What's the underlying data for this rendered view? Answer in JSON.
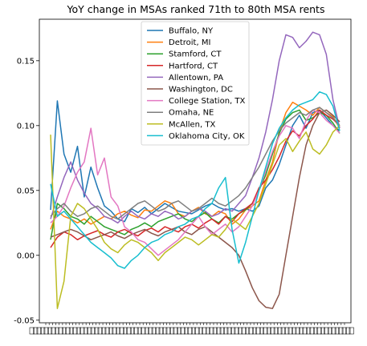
{
  "chart_data": {
    "type": "line",
    "title": "YoY change in MSAs ranked 71th to 80th MSA rents",
    "xlabel": "",
    "ylabel": "",
    "x_labels_note": "dense, overlapping date tick labels (illegible)",
    "ylim": [
      -0.052,
      0.182
    ],
    "yticks": [
      -0.05,
      0.0,
      0.05,
      0.1,
      0.15
    ],
    "ytick_labels": [
      "-0.05",
      "0.00",
      "0.05",
      "0.10",
      "0.15"
    ],
    "legend_position": "upper center",
    "grid": false,
    "colors": [
      "#1f77b4",
      "#ff7f0e",
      "#2ca02c",
      "#d62728",
      "#9467bd",
      "#8c564b",
      "#e377c2",
      "#7f7f7f",
      "#bcbd22",
      "#17becf"
    ],
    "series": [
      {
        "name": "Buffalo, NY",
        "values": [
          0.035,
          0.119,
          0.078,
          0.064,
          0.084,
          0.045,
          0.068,
          0.052,
          0.038,
          0.034,
          0.028,
          0.026,
          0.036,
          0.033,
          0.037,
          0.032,
          0.036,
          0.04,
          0.037,
          0.034,
          0.033,
          0.032,
          0.035,
          0.038,
          0.04,
          0.037,
          0.035,
          0.036,
          0.034,
          0.036,
          0.034,
          0.038,
          0.052,
          0.058,
          0.07,
          0.085,
          0.1,
          0.108,
          0.098,
          0.11,
          0.112,
          0.106,
          0.1,
          0.096
        ]
      },
      {
        "name": "Detroit, MI",
        "values": [
          0.02,
          0.034,
          0.03,
          0.028,
          0.025,
          0.028,
          0.024,
          0.027,
          0.03,
          0.028,
          0.032,
          0.034,
          0.031,
          0.029,
          0.035,
          0.034,
          0.038,
          0.042,
          0.04,
          0.032,
          0.03,
          0.034,
          0.037,
          0.032,
          0.03,
          0.034,
          0.032,
          0.024,
          0.028,
          0.035,
          0.038,
          0.042,
          0.058,
          0.072,
          0.095,
          0.11,
          0.118,
          0.115,
          0.112,
          0.108,
          0.114,
          0.11,
          0.107,
          0.098
        ]
      },
      {
        "name": "Stamford, CT",
        "values": [
          0.012,
          0.04,
          0.036,
          0.03,
          0.028,
          0.024,
          0.03,
          0.026,
          0.022,
          0.02,
          0.018,
          0.016,
          0.02,
          0.022,
          0.025,
          0.022,
          0.026,
          0.028,
          0.03,
          0.032,
          0.028,
          0.026,
          0.03,
          0.033,
          0.028,
          0.025,
          0.03,
          0.028,
          0.032,
          0.035,
          0.04,
          0.05,
          0.062,
          0.078,
          0.094,
          0.105,
          0.11,
          0.112,
          0.104,
          0.106,
          0.11,
          0.108,
          0.102,
          0.094
        ]
      },
      {
        "name": "Hartford, CT",
        "values": [
          0.006,
          0.014,
          0.018,
          0.016,
          0.012,
          0.015,
          0.017,
          0.019,
          0.016,
          0.014,
          0.018,
          0.02,
          0.017,
          0.015,
          0.019,
          0.021,
          0.018,
          0.022,
          0.02,
          0.018,
          0.022,
          0.024,
          0.021,
          0.025,
          0.028,
          0.024,
          0.03,
          0.026,
          0.032,
          0.036,
          0.04,
          0.052,
          0.058,
          0.066,
          0.076,
          0.088,
          0.096,
          0.092,
          0.1,
          0.105,
          0.112,
          0.108,
          0.105,
          0.1
        ]
      },
      {
        "name": "Allentown, PA",
        "values": [
          0.028,
          0.045,
          0.06,
          0.072,
          0.058,
          0.048,
          0.04,
          0.036,
          0.03,
          0.028,
          0.025,
          0.03,
          0.034,
          0.03,
          0.028,
          0.032,
          0.03,
          0.034,
          0.032,
          0.028,
          0.03,
          0.034,
          0.036,
          0.034,
          0.03,
          0.032,
          0.036,
          0.034,
          0.04,
          0.046,
          0.06,
          0.075,
          0.095,
          0.12,
          0.15,
          0.17,
          0.168,
          0.16,
          0.165,
          0.172,
          0.17,
          0.155,
          0.12,
          0.098
        ]
      },
      {
        "name": "Washington, DC",
        "values": [
          0.014,
          0.016,
          0.018,
          0.02,
          0.018,
          0.015,
          0.012,
          0.014,
          0.016,
          0.018,
          0.015,
          0.013,
          0.016,
          0.018,
          0.02,
          0.017,
          0.015,
          0.018,
          0.02,
          0.022,
          0.018,
          0.016,
          0.02,
          0.022,
          0.018,
          0.014,
          0.01,
          0.006,
          0.0,
          -0.012,
          -0.025,
          -0.035,
          -0.04,
          -0.041,
          -0.03,
          0.0,
          0.03,
          0.06,
          0.085,
          0.1,
          0.11,
          0.112,
          0.108,
          0.103
        ]
      },
      {
        "name": "College Station, TX",
        "values": [
          0.025,
          0.03,
          0.038,
          0.052,
          0.064,
          0.072,
          0.098,
          0.062,
          0.075,
          0.045,
          0.038,
          0.022,
          0.018,
          0.012,
          0.01,
          0.005,
          0.0,
          0.004,
          0.008,
          0.012,
          0.018,
          0.024,
          0.03,
          0.022,
          0.016,
          0.02,
          0.024,
          0.018,
          0.022,
          0.03,
          0.038,
          0.05,
          0.065,
          0.08,
          0.092,
          0.1,
          0.098,
          0.09,
          0.104,
          0.112,
          0.11,
          0.104,
          0.1,
          0.094
        ]
      },
      {
        "name": "Omaha, NE",
        "values": [
          0.03,
          0.036,
          0.04,
          0.034,
          0.03,
          0.032,
          0.036,
          0.038,
          0.034,
          0.03,
          0.028,
          0.032,
          0.036,
          0.04,
          0.042,
          0.038,
          0.034,
          0.036,
          0.04,
          0.042,
          0.038,
          0.034,
          0.036,
          0.04,
          0.044,
          0.04,
          0.038,
          0.042,
          0.046,
          0.052,
          0.06,
          0.068,
          0.078,
          0.088,
          0.096,
          0.102,
          0.106,
          0.11,
          0.108,
          0.112,
          0.114,
          0.11,
          0.106,
          0.1
        ]
      },
      {
        "name": "McAllen, TX",
        "values": [
          0.093,
          -0.041,
          -0.02,
          0.03,
          0.04,
          0.036,
          0.028,
          0.02,
          0.01,
          0.005,
          0.002,
          0.008,
          0.012,
          0.01,
          0.006,
          0.002,
          -0.004,
          0.002,
          0.006,
          0.01,
          0.014,
          0.012,
          0.008,
          0.012,
          0.016,
          0.014,
          0.02,
          0.028,
          0.024,
          0.02,
          0.03,
          0.04,
          0.055,
          0.07,
          0.085,
          0.09,
          0.08,
          0.088,
          0.095,
          0.082,
          0.078,
          0.085,
          0.095,
          0.1
        ]
      },
      {
        "name": "Oklahoma City, OK",
        "values": [
          0.055,
          0.03,
          0.034,
          0.028,
          0.022,
          0.016,
          0.01,
          0.006,
          0.002,
          -0.002,
          -0.008,
          -0.01,
          -0.004,
          0.0,
          0.006,
          0.01,
          0.012,
          0.016,
          0.018,
          0.022,
          0.024,
          0.028,
          0.03,
          0.036,
          0.04,
          0.052,
          0.06,
          0.02,
          -0.006,
          0.01,
          0.03,
          0.05,
          0.068,
          0.086,
          0.098,
          0.106,
          0.112,
          0.116,
          0.118,
          0.12,
          0.126,
          0.124,
          0.115,
          0.096
        ]
      }
    ]
  }
}
